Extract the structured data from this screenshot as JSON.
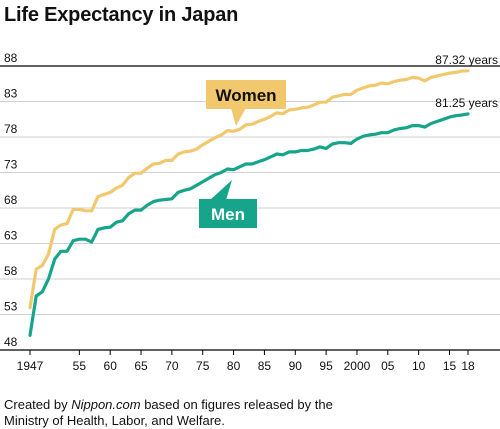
{
  "title": "Life Expectancy in Japan",
  "caption": {
    "prefix": "Created by ",
    "site": "Nippon.com",
    "suffix": " based on figures released by the",
    "line2": "Ministry of Health, Labor, and Welfare."
  },
  "colors": {
    "women": "#f2c86e",
    "men": "#16a58a",
    "axis": "#000000",
    "grid": "#d0d0d0",
    "men_label_text": "#ffffff",
    "women_label_text": "#111111"
  },
  "chart_data": {
    "type": "line",
    "title": "Life Expectancy in Japan",
    "xlabel": "",
    "ylabel": "",
    "xlim": [
      1947,
      2018
    ],
    "ylim": [
      48,
      88
    ],
    "grid": true,
    "y_ticks": [
      48,
      53,
      58,
      63,
      68,
      73,
      78,
      83,
      88
    ],
    "x_ticks": [
      {
        "year": 1947,
        "label": "1947"
      },
      {
        "year": 1955,
        "label": "55"
      },
      {
        "year": 1960,
        "label": "60"
      },
      {
        "year": 1965,
        "label": "65"
      },
      {
        "year": 1970,
        "label": "70"
      },
      {
        "year": 1975,
        "label": "75"
      },
      {
        "year": 1980,
        "label": "80"
      },
      {
        "year": 1985,
        "label": "85"
      },
      {
        "year": 1990,
        "label": "90"
      },
      {
        "year": 1995,
        "label": "95"
      },
      {
        "year": 2000,
        "label": "2000"
      },
      {
        "year": 2005,
        "label": "05"
      },
      {
        "year": 2010,
        "label": "10"
      },
      {
        "year": 2015,
        "label": "15"
      },
      {
        "year": 2018,
        "label": "18"
      }
    ],
    "x": [
      1947,
      1948,
      1949,
      1950,
      1951,
      1952,
      1953,
      1954,
      1955,
      1956,
      1957,
      1958,
      1959,
      1960,
      1961,
      1962,
      1963,
      1964,
      1965,
      1966,
      1967,
      1968,
      1969,
      1970,
      1971,
      1972,
      1973,
      1974,
      1975,
      1976,
      1977,
      1978,
      1979,
      1980,
      1981,
      1982,
      1983,
      1984,
      1985,
      1986,
      1987,
      1988,
      1989,
      1990,
      1991,
      1992,
      1993,
      1994,
      1995,
      1996,
      1997,
      1998,
      1999,
      2000,
      2001,
      2002,
      2003,
      2004,
      2005,
      2006,
      2007,
      2008,
      2009,
      2010,
      2011,
      2012,
      2013,
      2014,
      2015,
      2016,
      2017,
      2018
    ],
    "series": [
      {
        "name": "Women",
        "color": "#f2c86e",
        "end_label": "87.32 years",
        "values": [
          53.96,
          59.4,
          59.9,
          61.5,
          65.0,
          65.6,
          65.8,
          67.8,
          67.8,
          67.6,
          67.6,
          69.6,
          69.9,
          70.2,
          70.8,
          71.2,
          72.3,
          72.9,
          72.9,
          73.6,
          74.2,
          74.3,
          74.7,
          74.7,
          75.6,
          75.9,
          76.0,
          76.3,
          76.9,
          77.4,
          77.9,
          78.3,
          78.9,
          78.8,
          79.1,
          79.7,
          79.8,
          80.2,
          80.5,
          80.9,
          81.4,
          81.3,
          81.8,
          81.9,
          82.1,
          82.2,
          82.5,
          82.9,
          82.9,
          83.6,
          83.8,
          84.0,
          83.99,
          84.6,
          84.9,
          85.2,
          85.3,
          85.6,
          85.5,
          85.8,
          86.0,
          86.1,
          86.4,
          86.3,
          85.9,
          86.4,
          86.6,
          86.8,
          87.0,
          87.1,
          87.3,
          87.32
        ]
      },
      {
        "name": "Men",
        "color": "#16a58a",
        "end_label": "81.25 years",
        "values": [
          50.06,
          55.6,
          56.2,
          58.0,
          60.8,
          61.9,
          61.9,
          63.4,
          63.6,
          63.6,
          63.2,
          64.98,
          65.2,
          65.3,
          66.0,
          66.2,
          67.2,
          67.7,
          67.7,
          68.4,
          68.9,
          69.1,
          69.2,
          69.3,
          70.2,
          70.5,
          70.7,
          71.2,
          71.7,
          72.2,
          72.7,
          73.0,
          73.5,
          73.4,
          73.8,
          74.2,
          74.2,
          74.5,
          74.8,
          75.2,
          75.6,
          75.5,
          75.9,
          75.9,
          76.1,
          76.1,
          76.3,
          76.6,
          76.4,
          77.0,
          77.2,
          77.2,
          77.1,
          77.7,
          78.1,
          78.3,
          78.4,
          78.6,
          78.6,
          79.0,
          79.2,
          79.3,
          79.6,
          79.6,
          79.4,
          79.9,
          80.2,
          80.5,
          80.8,
          81.0,
          81.1,
          81.25
        ]
      }
    ],
    "annotations": [
      {
        "text": "Women",
        "series": "Women"
      },
      {
        "text": "Men",
        "series": "Men"
      }
    ]
  }
}
